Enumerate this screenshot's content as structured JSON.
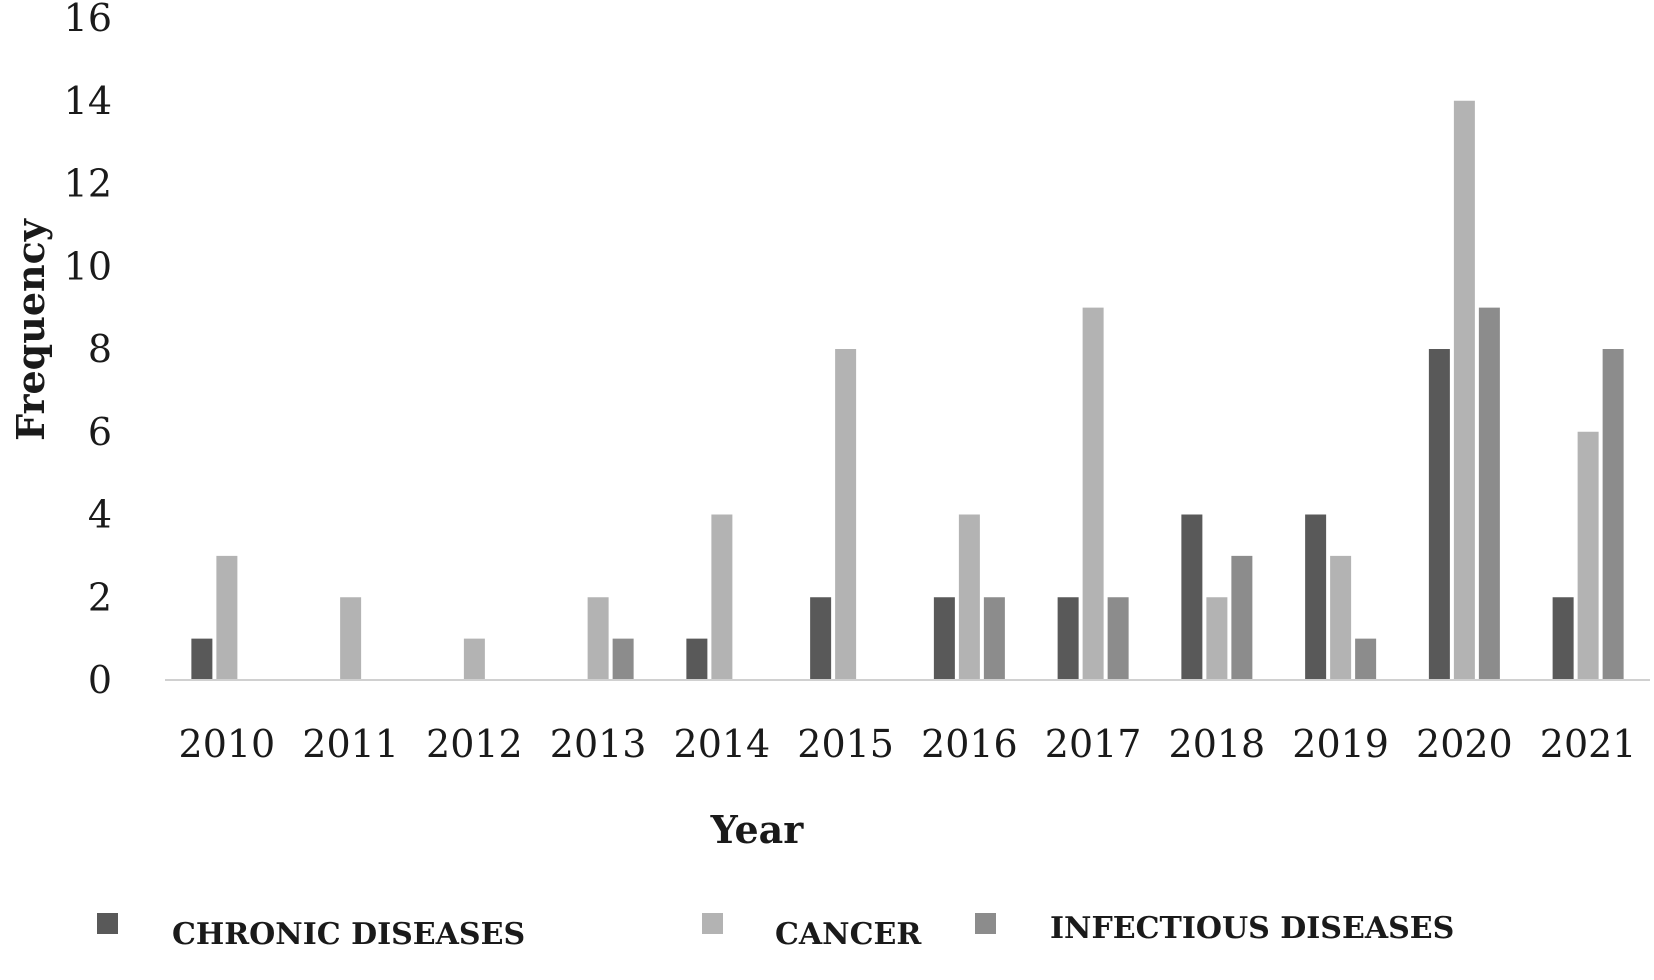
{
  "chart_data": {
    "type": "bar",
    "title": "",
    "xlabel": "Year",
    "ylabel": "Frequency",
    "ylim": [
      0,
      16
    ],
    "yticks": [
      0,
      2,
      4,
      6,
      8,
      10,
      12,
      14,
      16
    ],
    "grid": false,
    "legend_position": "bottom",
    "categories": [
      "2010",
      "2011",
      "2012",
      "2013",
      "2014",
      "2015",
      "2016",
      "2017",
      "2018",
      "2019",
      "2020",
      "2021"
    ],
    "series": [
      {
        "name": "CHRONIC DISEASES",
        "color": "#595959",
        "values": [
          1,
          0,
          0,
          0,
          1,
          2,
          2,
          2,
          4,
          4,
          8,
          2
        ]
      },
      {
        "name": "CANCER",
        "color": "#b3b3b3",
        "values": [
          3,
          2,
          1,
          2,
          4,
          8,
          4,
          9,
          2,
          3,
          14,
          6
        ]
      },
      {
        "name": "INFECTIOUS DISEASES",
        "color": "#8c8c8c",
        "values": [
          0,
          0,
          0,
          1,
          0,
          0,
          2,
          2,
          3,
          1,
          9,
          8
        ]
      }
    ]
  }
}
